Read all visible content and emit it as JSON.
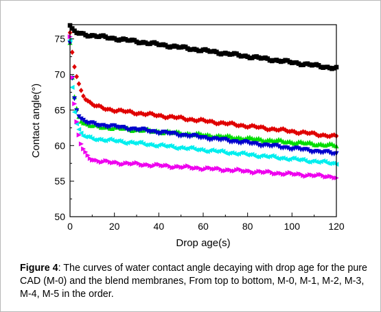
{
  "chart_data": {
    "type": "scatter",
    "xlabel": "Drop age(s)",
    "ylabel": "Contact angle(°)",
    "xlim": [
      0,
      120
    ],
    "ylim": [
      50,
      77
    ],
    "x_ticks": [
      "0",
      "20",
      "40",
      "60",
      "80",
      "100",
      "120"
    ],
    "y_ticks": [
      "50",
      "55",
      "60",
      "65",
      "70",
      "75"
    ],
    "grid": false,
    "legend": "none",
    "series": [
      {
        "color": "#000000",
        "marker": "square",
        "curve": {
          "a": 75.9,
          "b": 1.0,
          "k": 0.8,
          "c": 0.042,
          "d": 0
        }
      },
      {
        "color": "#e00000",
        "marker": "diamond",
        "curve": {
          "a": 65.7,
          "b": 10.0,
          "k": 0.3,
          "c": 0.037,
          "d": 0
        }
      },
      {
        "color": "#00dd00",
        "marker": "triangle-up",
        "curve": {
          "a": 63.0,
          "b": 11.5,
          "k": 0.55,
          "c": 0.025,
          "d": 0
        }
      },
      {
        "color": "#0000cc",
        "marker": "triangle-down",
        "curve": {
          "a": 63.4,
          "b": 11.0,
          "k": 0.6,
          "c": 0.038,
          "d": 0
        }
      },
      {
        "color": "#00eeee",
        "marker": "triangle-left",
        "curve": {
          "a": 61.3,
          "b": 13.5,
          "k": 0.65,
          "c": 0.032,
          "d": 0
        }
      },
      {
        "color": "#ee00ee",
        "marker": "triangle-right",
        "curve": {
          "a": 58.0,
          "b": 17.5,
          "k": 0.4,
          "c": 0.02,
          "d": 0
        }
      }
    ]
  },
  "caption": {
    "label": "Figure 4",
    "text": ": The curves of water contact angle decaying with drop age for the pure CAD (M-0) and the blend membranes, From top to bottom, M-0, M-1, M-2, M-3, M-4, M-5 in the order."
  }
}
